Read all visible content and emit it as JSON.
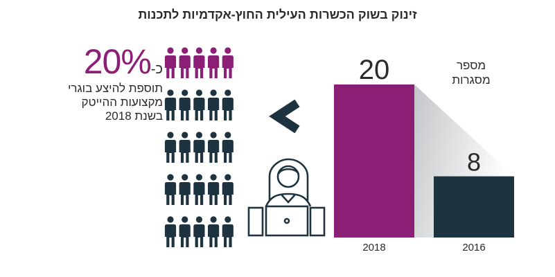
{
  "title": "זינוק בשוק הכשרות העילית החוץ-אקדמיות לתכנות",
  "stat": {
    "prefix": "כ-",
    "value": "20%",
    "description": "תוספת להיצע בוגרי מקצועות ההייטק בשנת 2018"
  },
  "colors": {
    "accent": "#8b1f75",
    "dark": "#1e3340",
    "text": "#2a2a2a"
  },
  "pictogram": {
    "rows": 5,
    "cols": 5,
    "highlighted_rows": 1
  },
  "icons": [
    "people-icon",
    "chevron-left-icon",
    "programmer-laptop-icon"
  ],
  "chart_data": {
    "type": "bar",
    "title": "מספר מסגרות",
    "ylabel": "מספר מסגרות",
    "xlabel": "",
    "categories": [
      "2018",
      "2016"
    ],
    "values": [
      20,
      8
    ],
    "colors": [
      "#8b1f75",
      "#1e3340"
    ],
    "ylim": [
      0,
      20
    ]
  }
}
